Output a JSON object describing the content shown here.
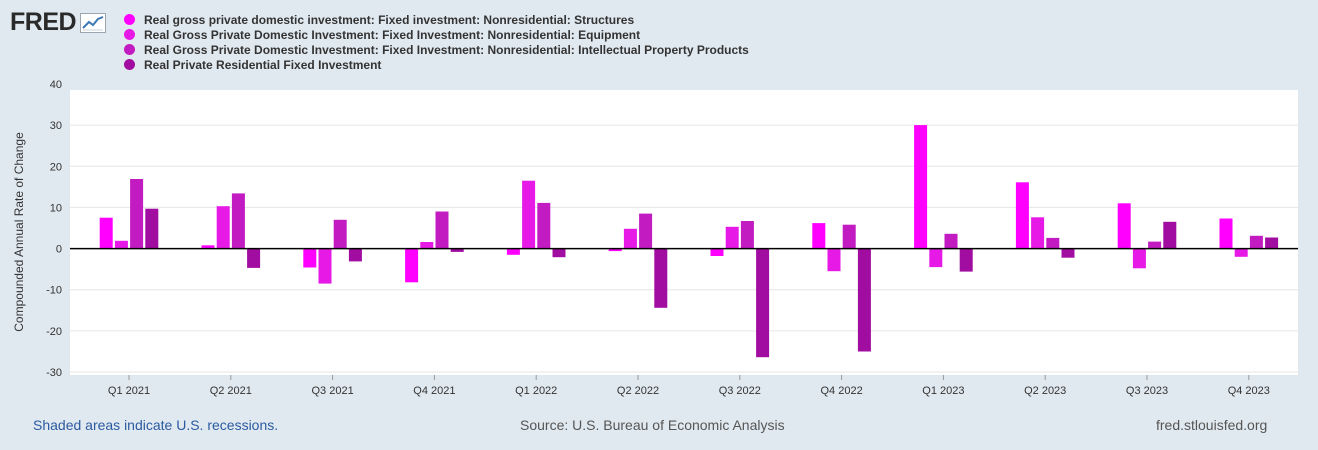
{
  "header": {
    "logo_text": "FRED"
  },
  "colors": {
    "series1": "#ff00ff",
    "series2": "#e619e6",
    "series3": "#c21bc2",
    "series4": "#a10ca1",
    "plot_bg": "#ffffff",
    "page_bg": "#e1e9f0",
    "grid": "#e6e6e6",
    "zero_line": "#000000"
  },
  "footer": {
    "recessions_note": "Shaded areas indicate U.S. recessions.",
    "source": "Source: U.S. Bureau of Economic Analysis",
    "site": "fred.stlouisfed.org"
  },
  "chart_data": {
    "type": "bar",
    "title": "",
    "xlabel": "",
    "ylabel": "Compounded Annual Rate of Change",
    "ylim": [
      -30,
      40
    ],
    "yticks": [
      40,
      30,
      20,
      10,
      0,
      -10,
      -20,
      -30
    ],
    "ytick_labels": [
      "40",
      "30",
      "20",
      "10",
      "0",
      "-10",
      "-20",
      "-30"
    ],
    "grid": true,
    "legend_position": "top-left",
    "categories": [
      "Q1 2021",
      "Q2 2021",
      "Q3 2021",
      "Q4 2021",
      "Q1 2022",
      "Q2 2022",
      "Q3 2022",
      "Q4 2022",
      "Q1 2023",
      "Q2 2023",
      "Q3 2023",
      "Q4 2023"
    ],
    "series": [
      {
        "name": "Real gross private domestic investment: Fixed investment: Nonresidential: Structures",
        "color": "#ff00ff",
        "values": [
          7.5,
          0.8,
          -4.6,
          -8.2,
          -1.5,
          -0.6,
          -1.8,
          6.2,
          30.0,
          16.1,
          11.0,
          7.3
        ]
      },
      {
        "name": "Real Gross Private Domestic Investment: Fixed Investment: Nonresidential: Equipment",
        "color": "#e619e6",
        "values": [
          1.9,
          10.3,
          -8.5,
          1.6,
          16.5,
          4.8,
          5.3,
          -5.5,
          -4.5,
          7.6,
          -4.8,
          -2.0
        ]
      },
      {
        "name": "Real Gross Private Domestic Investment: Fixed Investment: Nonresidential: Intellectual Property Products",
        "color": "#c21bc2",
        "values": [
          16.9,
          13.4,
          7.0,
          9.0,
          11.1,
          8.5,
          6.7,
          5.8,
          3.6,
          2.6,
          1.7,
          3.1
        ]
      },
      {
        "name": "Real Private Residential Fixed Investment",
        "color": "#a10ca1",
        "values": [
          9.7,
          -4.7,
          -3.1,
          -0.8,
          -2.1,
          -14.4,
          -26.4,
          -25.0,
          -5.6,
          -2.2,
          6.5,
          2.7
        ]
      }
    ]
  }
}
